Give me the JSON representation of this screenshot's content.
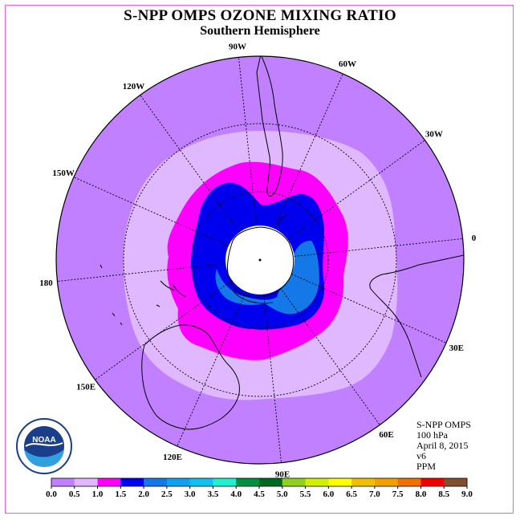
{
  "title": "S-NPP OMPS OZONE MIXING RATIO",
  "subtitle": "Southern Hemisphere",
  "info": {
    "instrument": "S-NPP OMPS",
    "level": "100 hPa",
    "date": "April 8, 2015",
    "version": "v6",
    "units": "PPM"
  },
  "logo": {
    "text": "NOAA",
    "ring_text": "NATIONAL OCEANIC AND ATMOSPHERIC ADMINISTRATION · U.S. DEPARTMENT OF COMMERCE"
  },
  "longitude_labels": [
    {
      "text": "0",
      "lon": 0
    },
    {
      "text": "30E",
      "lon": 30
    },
    {
      "text": "60E",
      "lon": 60
    },
    {
      "text": "90E",
      "lon": 90
    },
    {
      "text": "120E",
      "lon": 120
    },
    {
      "text": "150E",
      "lon": 150
    },
    {
      "text": "180",
      "lon": 180
    },
    {
      "text": "150W",
      "lon": -150
    },
    {
      "text": "120W",
      "lon": -120
    },
    {
      "text": "90W",
      "lon": -90
    },
    {
      "text": "60W",
      "lon": -60
    },
    {
      "text": "30W",
      "lon": -30
    }
  ],
  "colorbar": {
    "ticks": [
      "0.0",
      "0.5",
      "1.0",
      "1.5",
      "2.0",
      "2.5",
      "3.0",
      "3.5",
      "4.0",
      "4.5",
      "5.0",
      "5.5",
      "6.0",
      "6.5",
      "7.0",
      "7.5",
      "8.0",
      "8.5",
      "9.0"
    ],
    "colors": [
      "#c080ff",
      "#e0b8ff",
      "#ff00ff",
      "#0000ee",
      "#1478e8",
      "#10a0f0",
      "#10c0f0",
      "#20f0d0",
      "#009040",
      "#006820",
      "#90d020",
      "#d0f000",
      "#ffff00",
      "#f0c000",
      "#f0a000",
      "#f07000",
      "#f00000",
      "#805030"
    ]
  },
  "colors": {
    "band_0_0.5": "#c080ff",
    "band_0.5_1.0": "#e0b8ff",
    "band_1.0_1.5": "#ff00ff",
    "band_1.5_2.0": "#0000ee",
    "band_2.0_2.5": "#1478e8",
    "no_data": "#ffffff",
    "border": "#e060e0"
  }
}
